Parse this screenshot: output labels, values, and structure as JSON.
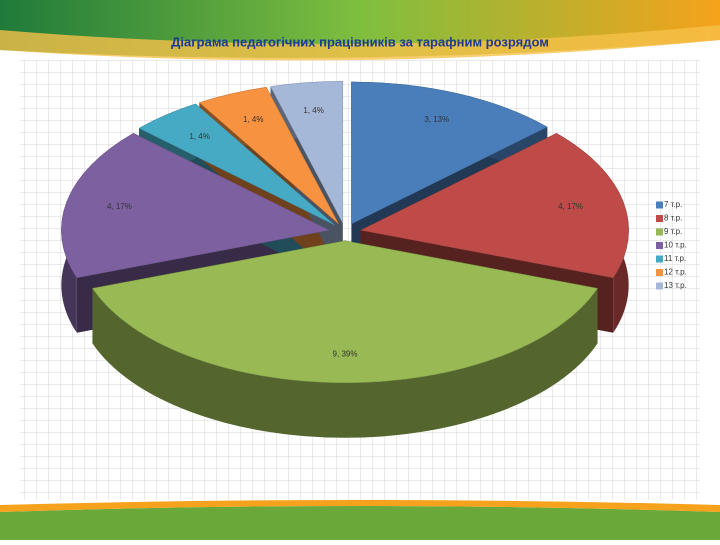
{
  "chart_data": {
    "type": "pie",
    "title": "Діаграма педагогічних працівників за тарафним розрядом",
    "categories": [
      "7 т.р.",
      "8 т.р.",
      "9 т.р.",
      "10 т.р.",
      "11 т.р.",
      "12 т.р.",
      "13 т.р."
    ],
    "values": [
      3,
      4,
      9,
      4,
      1,
      1,
      1
    ],
    "value_labels": [
      "3, 13%",
      "4, 17%",
      "9, 39%",
      "4, 17%",
      "1, 4%",
      "1, 4%",
      "1, 4%"
    ],
    "colors": [
      "#4a7ebb",
      "#be4b48",
      "#98b954",
      "#7d60a0",
      "#46aac5",
      "#f69240",
      "#a5b8d8"
    ],
    "legend": "right"
  }
}
